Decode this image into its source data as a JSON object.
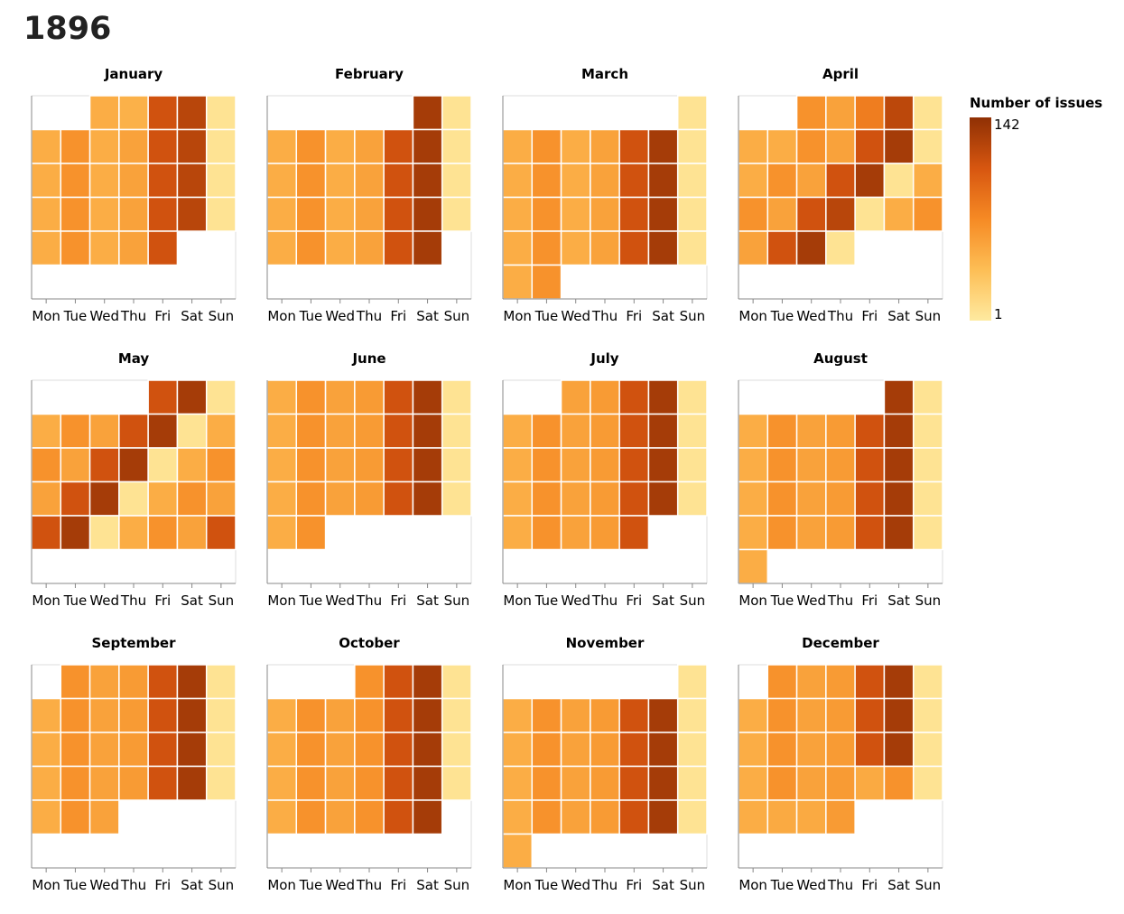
{
  "page": {
    "title": "1896"
  },
  "chart_data": {
    "type": "heatmap",
    "title": "1896",
    "year": 1896,
    "weekdays": [
      "Mon",
      "Tue",
      "Wed",
      "Thu",
      "Fri",
      "Sat",
      "Sun"
    ],
    "legend": {
      "title": "Number of issues",
      "max_label": "142",
      "min_label": "1",
      "min": 1,
      "max": 142
    },
    "color_scale": [
      "#feeaa0",
      "#fdbe55",
      "#f68a24",
      "#d75610",
      "#8f3004"
    ],
    "axes": {
      "x": "weekday",
      "y": "week of month",
      "grid": false
    },
    "months": [
      {
        "name": "January",
        "first_weekday": 2,
        "days": 31,
        "values": [
          48,
          45,
          110,
          122,
          7,
          48,
          66,
          48,
          55,
          110,
          122,
          7,
          48,
          66,
          48,
          55,
          110,
          122,
          7,
          48,
          66,
          48,
          55,
          110,
          122,
          7,
          48,
          66,
          48,
          55,
          110
        ]
      },
      {
        "name": "February",
        "first_weekday": 5,
        "days": 29,
        "values": [
          131,
          7,
          48,
          66,
          48,
          55,
          110,
          131,
          7,
          48,
          66,
          48,
          55,
          110,
          131,
          7,
          48,
          66,
          48,
          55,
          110,
          131,
          7,
          48,
          66,
          48,
          55,
          110,
          131
        ]
      },
      {
        "name": "March",
        "first_weekday": 6,
        "days": 31,
        "values": [
          7,
          48,
          66,
          48,
          55,
          110,
          131,
          7,
          48,
          66,
          48,
          55,
          110,
          131,
          7,
          48,
          66,
          48,
          55,
          110,
          131,
          7,
          48,
          66,
          48,
          55,
          110,
          131,
          7,
          48,
          66
        ]
      },
      {
        "name": "April",
        "first_weekday": 2,
        "days": 30,
        "values": [
          66,
          55,
          80,
          120,
          7,
          48,
          48,
          66,
          55,
          110,
          131,
          7,
          48,
          66,
          55,
          110,
          131,
          7,
          48,
          66,
          55,
          110,
          122,
          7,
          48,
          66,
          55,
          110,
          131,
          7
        ]
      },
      {
        "name": "May",
        "first_weekday": 4,
        "days": 31,
        "values": [
          110,
          131,
          7,
          48,
          66,
          55,
          110,
          131,
          7,
          48,
          66,
          55,
          110,
          131,
          7,
          48,
          66,
          55,
          110,
          131,
          7,
          48,
          66,
          55,
          110,
          131,
          7,
          48,
          66,
          55,
          110
        ]
      },
      {
        "name": "June",
        "first_weekday": 0,
        "days": 30,
        "values": [
          48,
          66,
          55,
          60,
          110,
          131,
          7,
          48,
          66,
          55,
          60,
          110,
          131,
          7,
          48,
          66,
          55,
          60,
          110,
          131,
          7,
          48,
          66,
          55,
          60,
          110,
          131,
          7,
          48,
          66
        ]
      },
      {
        "name": "July",
        "first_weekday": 2,
        "days": 31,
        "values": [
          55,
          60,
          110,
          131,
          7,
          48,
          66,
          55,
          60,
          110,
          131,
          7,
          48,
          66,
          55,
          60,
          110,
          131,
          7,
          48,
          66,
          55,
          60,
          110,
          131,
          7,
          48,
          66,
          55,
          60,
          110
        ]
      },
      {
        "name": "August",
        "first_weekday": 5,
        "days": 31,
        "values": [
          131,
          7,
          48,
          66,
          55,
          60,
          110,
          131,
          7,
          48,
          66,
          55,
          60,
          110,
          131,
          7,
          48,
          66,
          55,
          60,
          110,
          131,
          7,
          48,
          66,
          55,
          60,
          110,
          131,
          7,
          48
        ]
      },
      {
        "name": "September",
        "first_weekday": 1,
        "days": 30,
        "values": [
          66,
          55,
          60,
          110,
          131,
          7,
          48,
          66,
          55,
          60,
          110,
          131,
          7,
          48,
          66,
          55,
          60,
          110,
          131,
          7,
          48,
          66,
          55,
          60,
          110,
          131,
          7,
          48,
          66,
          55
        ]
      },
      {
        "name": "October",
        "first_weekday": 3,
        "days": 31,
        "values": [
          66,
          110,
          131,
          7,
          48,
          66,
          55,
          66,
          110,
          131,
          7,
          48,
          66,
          55,
          66,
          110,
          131,
          7,
          48,
          66,
          55,
          66,
          110,
          131,
          7,
          48,
          66,
          55,
          66,
          110,
          131
        ]
      },
      {
        "name": "November",
        "first_weekday": 6,
        "days": 30,
        "values": [
          7,
          48,
          66,
          55,
          60,
          110,
          131,
          7,
          48,
          66,
          55,
          60,
          110,
          131,
          7,
          48,
          66,
          55,
          60,
          110,
          131,
          7,
          48,
          66,
          55,
          60,
          110,
          131,
          7,
          48
        ]
      },
      {
        "name": "December",
        "first_weekday": 1,
        "days": 31,
        "values": [
          66,
          55,
          60,
          110,
          131,
          7,
          48,
          66,
          55,
          60,
          110,
          131,
          7,
          48,
          66,
          55,
          60,
          110,
          131,
          7,
          48,
          66,
          55,
          60,
          50,
          66,
          7,
          48,
          50,
          50,
          60
        ]
      }
    ]
  }
}
